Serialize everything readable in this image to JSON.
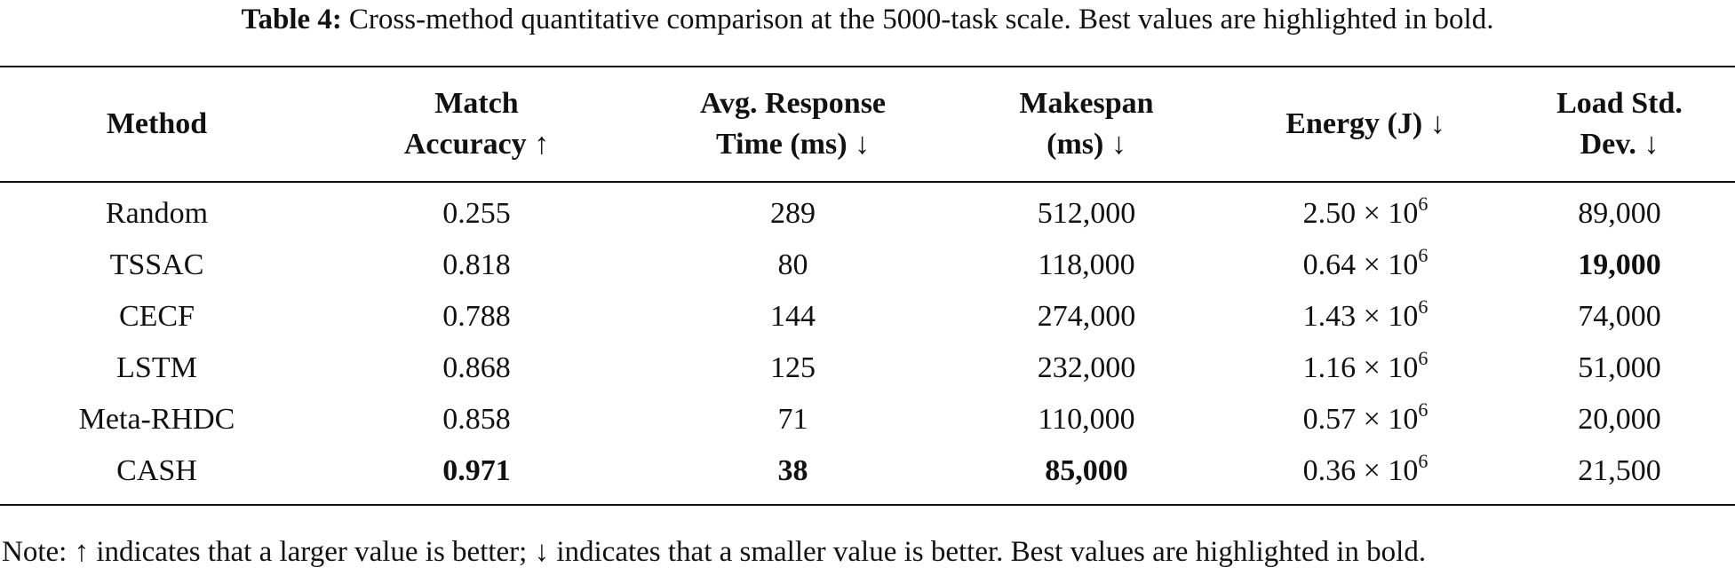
{
  "caption": {
    "label": "Table 4:",
    "text": "Cross-method quantitative comparison at the 5000-task scale. Best values are highlighted in bold."
  },
  "table": {
    "headers": [
      [
        "Method"
      ],
      [
        "Match",
        "Accuracy ↑"
      ],
      [
        "Avg. Response",
        "Time (ms) ↓"
      ],
      [
        "Makespan",
        "(ms) ↓"
      ],
      [
        "Energy (J) ↓"
      ],
      [
        "Load Std.",
        "Dev. ↓"
      ]
    ],
    "rows": [
      [
        "Random",
        "0.255",
        "289",
        "512,000",
        {
          "base": "2.50 × 10",
          "exp": "6"
        },
        "89,000"
      ],
      [
        "TSSAC",
        "0.818",
        "80",
        "118,000",
        {
          "base": "0.64 × 10",
          "exp": "6"
        },
        "19,000"
      ],
      [
        "CECF",
        "0.788",
        "144",
        "274,000",
        {
          "base": "1.43 × 10",
          "exp": "6"
        },
        "74,000"
      ],
      [
        "LSTM",
        "0.868",
        "125",
        "232,000",
        {
          "base": "1.16 × 10",
          "exp": "6"
        },
        "51,000"
      ],
      [
        "Meta-RHDC",
        "0.858",
        "71",
        "110,000",
        {
          "base": "0.57 × 10",
          "exp": "6"
        },
        "20,000"
      ],
      [
        "CASH",
        "0.971",
        "38",
        "85,000",
        {
          "base": "0.36 × 10",
          "exp": "6"
        },
        "21,500"
      ]
    ]
  },
  "note": "Note: ↑ indicates that a larger value is better; ↓ indicates that a smaller value is better. Best values are highlighted in bold."
}
